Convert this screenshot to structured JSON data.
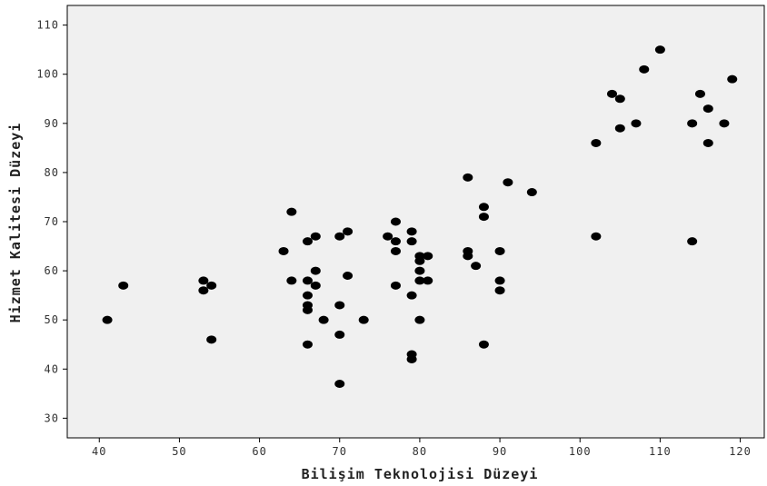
{
  "chart_data": {
    "type": "scatter",
    "title": "",
    "xlabel": "Bilişim Teknolojisi Düzeyi",
    "ylabel": "Hizmet Kalitesi Düzeyi",
    "xlim": [
      36,
      123
    ],
    "ylim": [
      26,
      114
    ],
    "xticks": [
      40,
      50,
      60,
      70,
      80,
      90,
      100,
      110,
      120
    ],
    "yticks": [
      30,
      40,
      50,
      60,
      70,
      80,
      90,
      100,
      110
    ],
    "grid": false,
    "plot_background": "#f0f0f0",
    "point_color": "#000000",
    "points": [
      {
        "x": 41,
        "y": 50
      },
      {
        "x": 43,
        "y": 57
      },
      {
        "x": 53,
        "y": 58
      },
      {
        "x": 53,
        "y": 56
      },
      {
        "x": 54,
        "y": 57
      },
      {
        "x": 54,
        "y": 46
      },
      {
        "x": 63,
        "y": 64
      },
      {
        "x": 64,
        "y": 72
      },
      {
        "x": 64,
        "y": 58
      },
      {
        "x": 66,
        "y": 66
      },
      {
        "x": 66,
        "y": 58
      },
      {
        "x": 66,
        "y": 55
      },
      {
        "x": 66,
        "y": 53
      },
      {
        "x": 66,
        "y": 52
      },
      {
        "x": 66,
        "y": 45
      },
      {
        "x": 67,
        "y": 67
      },
      {
        "x": 67,
        "y": 60
      },
      {
        "x": 67,
        "y": 57
      },
      {
        "x": 68,
        "y": 50
      },
      {
        "x": 70,
        "y": 67
      },
      {
        "x": 70,
        "y": 53
      },
      {
        "x": 70,
        "y": 47
      },
      {
        "x": 70,
        "y": 37
      },
      {
        "x": 71,
        "y": 68
      },
      {
        "x": 71,
        "y": 59
      },
      {
        "x": 73,
        "y": 50
      },
      {
        "x": 76,
        "y": 67
      },
      {
        "x": 77,
        "y": 70
      },
      {
        "x": 77,
        "y": 66
      },
      {
        "x": 77,
        "y": 64
      },
      {
        "x": 77,
        "y": 57
      },
      {
        "x": 79,
        "y": 68
      },
      {
        "x": 79,
        "y": 66
      },
      {
        "x": 79,
        "y": 55
      },
      {
        "x": 79,
        "y": 43
      },
      {
        "x": 79,
        "y": 42
      },
      {
        "x": 80,
        "y": 63
      },
      {
        "x": 80,
        "y": 62
      },
      {
        "x": 80,
        "y": 60
      },
      {
        "x": 80,
        "y": 58
      },
      {
        "x": 80,
        "y": 50
      },
      {
        "x": 81,
        "y": 63
      },
      {
        "x": 81,
        "y": 58
      },
      {
        "x": 86,
        "y": 79
      },
      {
        "x": 86,
        "y": 64
      },
      {
        "x": 86,
        "y": 63
      },
      {
        "x": 87,
        "y": 61
      },
      {
        "x": 88,
        "y": 73
      },
      {
        "x": 88,
        "y": 71
      },
      {
        "x": 88,
        "y": 45
      },
      {
        "x": 90,
        "y": 64
      },
      {
        "x": 90,
        "y": 58
      },
      {
        "x": 90,
        "y": 56
      },
      {
        "x": 91,
        "y": 78
      },
      {
        "x": 94,
        "y": 76
      },
      {
        "x": 102,
        "y": 86
      },
      {
        "x": 102,
        "y": 67
      },
      {
        "x": 104,
        "y": 96
      },
      {
        "x": 105,
        "y": 95
      },
      {
        "x": 105,
        "y": 89
      },
      {
        "x": 107,
        "y": 90
      },
      {
        "x": 108,
        "y": 101
      },
      {
        "x": 110,
        "y": 105
      },
      {
        "x": 114,
        "y": 90
      },
      {
        "x": 114,
        "y": 66
      },
      {
        "x": 115,
        "y": 96
      },
      {
        "x": 116,
        "y": 93
      },
      {
        "x": 116,
        "y": 86
      },
      {
        "x": 118,
        "y": 90
      },
      {
        "x": 119,
        "y": 99
      }
    ]
  }
}
